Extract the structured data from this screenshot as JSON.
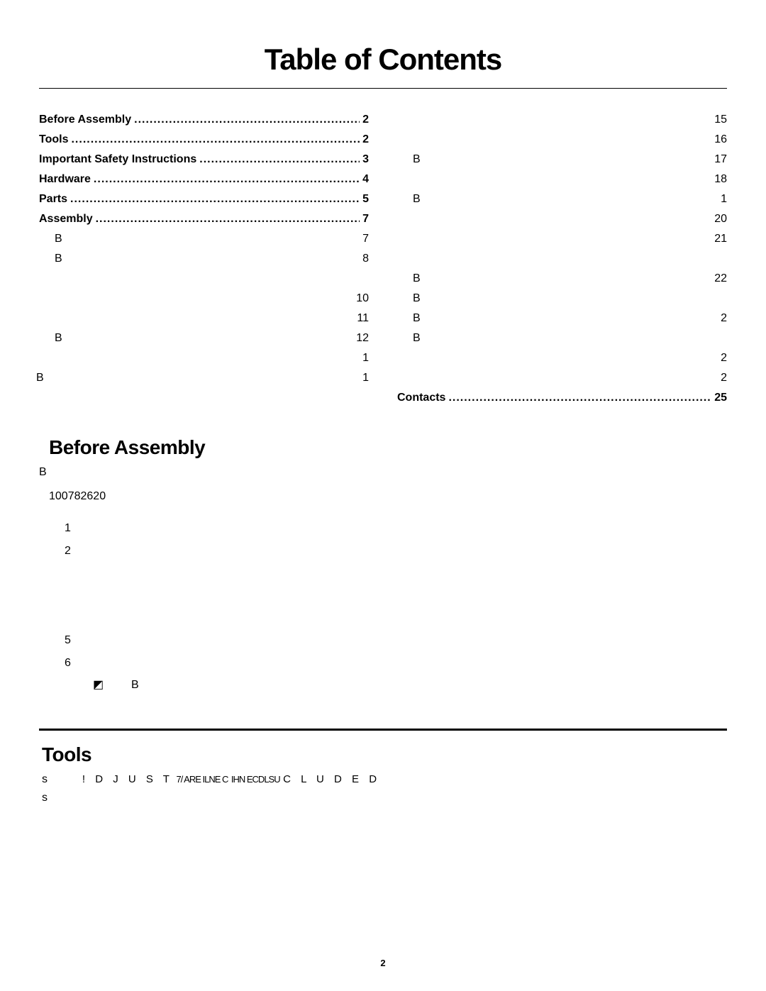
{
  "title": "Table of Contents",
  "toc_left": [
    {
      "label": "Before Assembly",
      "page": "2",
      "bold": true,
      "dotted": true,
      "indent": 0
    },
    {
      "label": "Tools",
      "page": "2",
      "bold": true,
      "dotted": true,
      "indent": 0
    },
    {
      "label": "Important Safety Instructions",
      "page": "3",
      "bold": true,
      "dotted": true,
      "indent": 0
    },
    {
      "label": "Hardware",
      "page": "4",
      "bold": true,
      "dotted": true,
      "indent": 0
    },
    {
      "label": "Parts",
      "page": "5",
      "bold": true,
      "dotted": true,
      "indent": 0
    },
    {
      "label": "Assembly",
      "page": "7",
      "bold": true,
      "dotted": true,
      "indent": 0
    },
    {
      "label": "B",
      "page": "7",
      "bold": false,
      "dotted": false,
      "indent": 1
    },
    {
      "label": "B",
      "page": "8",
      "bold": false,
      "dotted": false,
      "indent": 1
    },
    {
      "label": " ",
      "page": " ",
      "bold": false,
      "dotted": false,
      "indent": 1
    },
    {
      "label": " ",
      "page": "10",
      "bold": false,
      "dotted": false,
      "indent": 1
    },
    {
      "label": " ",
      "page": "11",
      "bold": false,
      "dotted": false,
      "indent": 1
    },
    {
      "label": "B",
      "page": "12",
      "bold": false,
      "dotted": false,
      "indent": 1
    },
    {
      "label": " ",
      "page": "1",
      "bold": false,
      "dotted": false,
      "indent": 1
    },
    {
      "label": "B",
      "page": "1",
      "bold": false,
      "dotted": false,
      "indent": -1
    }
  ],
  "toc_right": [
    {
      "label": " ",
      "page": "15",
      "bold": false,
      "dotted": false,
      "indent": 1
    },
    {
      "label": " ",
      "page": "16",
      "bold": false,
      "dotted": false,
      "indent": 1
    },
    {
      "label": "B",
      "page": "17",
      "bold": false,
      "dotted": false,
      "indent": 1
    },
    {
      "label": " ",
      "page": "18",
      "bold": false,
      "dotted": false,
      "indent": 1
    },
    {
      "label": "B",
      "page": "1",
      "bold": false,
      "dotted": false,
      "indent": 1
    },
    {
      "label": " ",
      "page": "20",
      "bold": false,
      "dotted": false,
      "indent": 1
    },
    {
      "label": " ",
      "page": "21",
      "bold": false,
      "dotted": false,
      "indent": 1
    },
    {
      "label": " ",
      "page": " ",
      "bold": false,
      "dotted": false,
      "indent": 1
    },
    {
      "label": "B",
      "page": "22",
      "bold": false,
      "dotted": false,
      "indent": 1
    },
    {
      "label": "B",
      "page": " ",
      "bold": false,
      "dotted": false,
      "indent": 1
    },
    {
      "label": "B",
      "page": "2",
      "bold": false,
      "dotted": false,
      "indent": 1
    },
    {
      "label": "B",
      "page": " ",
      "bold": false,
      "dotted": false,
      "indent": 1
    },
    {
      "label": " ",
      "page": "2",
      "bold": false,
      "dotted": false,
      "indent": 1
    },
    {
      "label": " ",
      "page": "2",
      "bold": false,
      "dotted": false,
      "indent": 1
    },
    {
      "label": "Contacts",
      "page": "25",
      "bold": true,
      "dotted": true,
      "indent": 0
    }
  ],
  "before_assembly": {
    "heading": "Before Assembly",
    "line_b": "B",
    "model": "100782620",
    "numbered": [
      "1",
      "2",
      "",
      "",
      "",
      "5",
      "6"
    ],
    "note_glyph": "◩",
    "note_b": "B"
  },
  "tools": {
    "heading": "Tools",
    "bullet_char": "s",
    "line1_pre": "! D J U S T",
    "line1_mid": "7/ ARE ILNE C",
    "line1_mid2": "IHN ECDLSU",
    "line1_post": "C L U D E D",
    "line2": "s"
  },
  "page_number": "2",
  "styles": {
    "text_color": "#000000",
    "background": "#ffffff",
    "title_fontsize": 42,
    "heading_fontsize": 28,
    "body_fontsize": 16,
    "rule_thick": 3,
    "rule_thin": 1
  }
}
